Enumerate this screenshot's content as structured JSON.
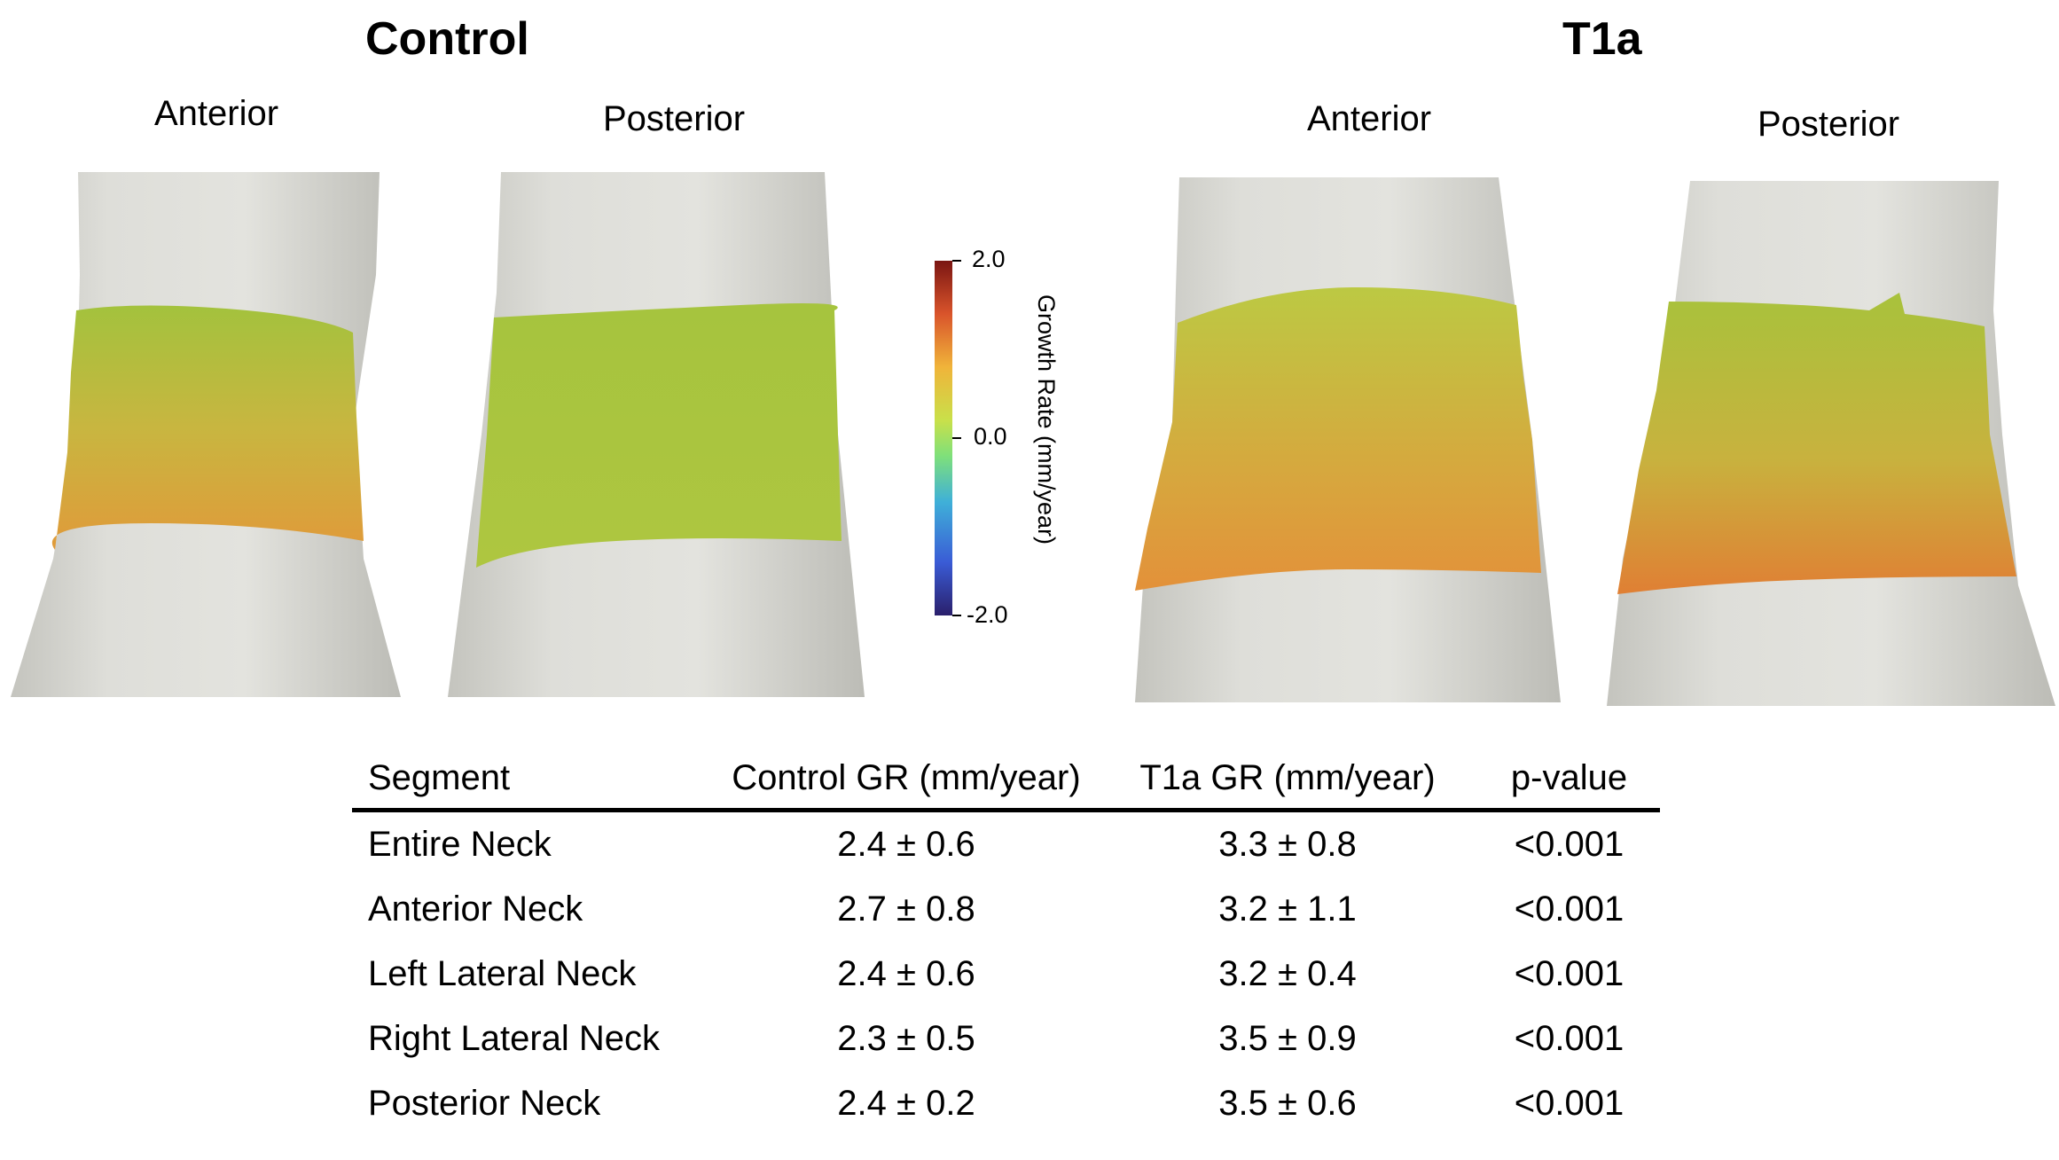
{
  "groups": [
    {
      "title": "Control",
      "views": [
        "Anterior",
        "Posterior"
      ]
    },
    {
      "title": "T1a",
      "views": [
        "Anterior",
        "Posterior"
      ]
    }
  ],
  "colorbar": {
    "title": "Growth Rate (mm/year)",
    "max_label": "2.0",
    "mid_label": "0.0",
    "min_label": "-2.0",
    "colors": [
      "#2a1f6b",
      "#3a5cd6",
      "#3fb0d8",
      "#7fe07a",
      "#c9e04a",
      "#f0b43a",
      "#d9542b",
      "#7a1512"
    ]
  },
  "table": {
    "headers": [
      "Segment",
      "Control GR (mm/year)",
      "T1a GR (mm/year)",
      "p-value"
    ],
    "rows": [
      [
        "Entire Neck",
        "2.4 ± 0.6",
        "3.3 ± 0.8",
        "<0.001"
      ],
      [
        "Anterior Neck",
        "2.7 ± 0.8",
        "3.2 ± 1.1",
        "<0.001"
      ],
      [
        "Left Lateral Neck",
        "2.4 ± 0.6",
        "3.2 ± 0.4",
        "<0.001"
      ],
      [
        "Right Lateral Neck",
        "2.3 ± 0.5",
        "3.5 ± 0.9",
        "<0.001"
      ],
      [
        "Posterior Neck",
        "2.4 ± 0.2",
        "3.5 ± 0.6",
        "<0.001"
      ]
    ]
  }
}
